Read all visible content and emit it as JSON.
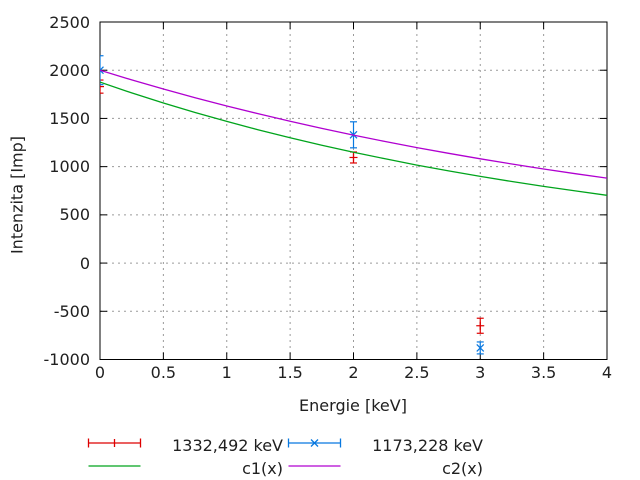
{
  "chart_data": {
    "type": "line",
    "title": "",
    "xlabel": "Energie [keV]",
    "ylabel": "Intenzita [Imp]",
    "xlim": [
      0,
      4
    ],
    "ylim": [
      -1000,
      2500
    ],
    "xticks": [
      "0",
      "0.5",
      "1",
      "1.5",
      "2",
      "2.5",
      "3",
      "3.5",
      "4"
    ],
    "xtick_values": [
      0,
      0.5,
      1,
      1.5,
      2,
      2.5,
      3,
      3.5,
      4
    ],
    "yticks": [
      "-1000",
      "-500",
      "0",
      "500",
      "1000",
      "1500",
      "2000",
      "2500"
    ],
    "ytick_values": [
      -1000,
      -500,
      0,
      500,
      1000,
      1500,
      2000,
      2500
    ],
    "grid": true,
    "legend_position": "below-center",
    "grid_color": "#9a9a9a",
    "border_color": "#000000",
    "text_color": "#202020",
    "series": [
      {
        "name": "1332,492 keV",
        "type": "yerrorbars",
        "marker": "plus",
        "color": "#dd0000",
        "points": [
          {
            "x": 0,
            "y": 1830,
            "err": 68
          },
          {
            "x": 2,
            "y": 1095,
            "err": 57
          },
          {
            "x": 3,
            "y": -650,
            "err": 78
          }
        ]
      },
      {
        "name": "1173,228 keV",
        "type": "yerrorbars",
        "marker": "cross",
        "color": "#0878e0",
        "points": [
          {
            "x": 0,
            "y": 2000,
            "err": 150
          },
          {
            "x": 2,
            "y": 1330,
            "err": 135
          },
          {
            "x": 3,
            "y": -880,
            "err": 62
          }
        ]
      },
      {
        "name": "c1(x)",
        "type": "line",
        "color": "#00a41c",
        "x": [
          0,
          0.25,
          0.5,
          0.75,
          1,
          1.25,
          1.5,
          1.75,
          2,
          2.25,
          2.5,
          2.75,
          3,
          3.25,
          3.5,
          3.75,
          4
        ],
        "y": [
          1877,
          1765,
          1660,
          1561,
          1469,
          1381,
          1299,
          1222,
          1149,
          1081,
          1016,
          956,
          899,
          846,
          795,
          748,
          703
        ]
      },
      {
        "name": "c2(x)",
        "type": "line",
        "color": "#b000d0",
        "x": [
          0,
          0.25,
          0.5,
          0.75,
          1,
          1.25,
          1.5,
          1.75,
          2,
          2.25,
          2.5,
          2.75,
          3,
          3.25,
          3.5,
          3.75,
          4
        ],
        "y": [
          2000,
          1900,
          1805,
          1715,
          1629,
          1548,
          1471,
          1397,
          1327,
          1261,
          1198,
          1138,
          1081,
          1027,
          976,
          927,
          881
        ]
      }
    ]
  }
}
